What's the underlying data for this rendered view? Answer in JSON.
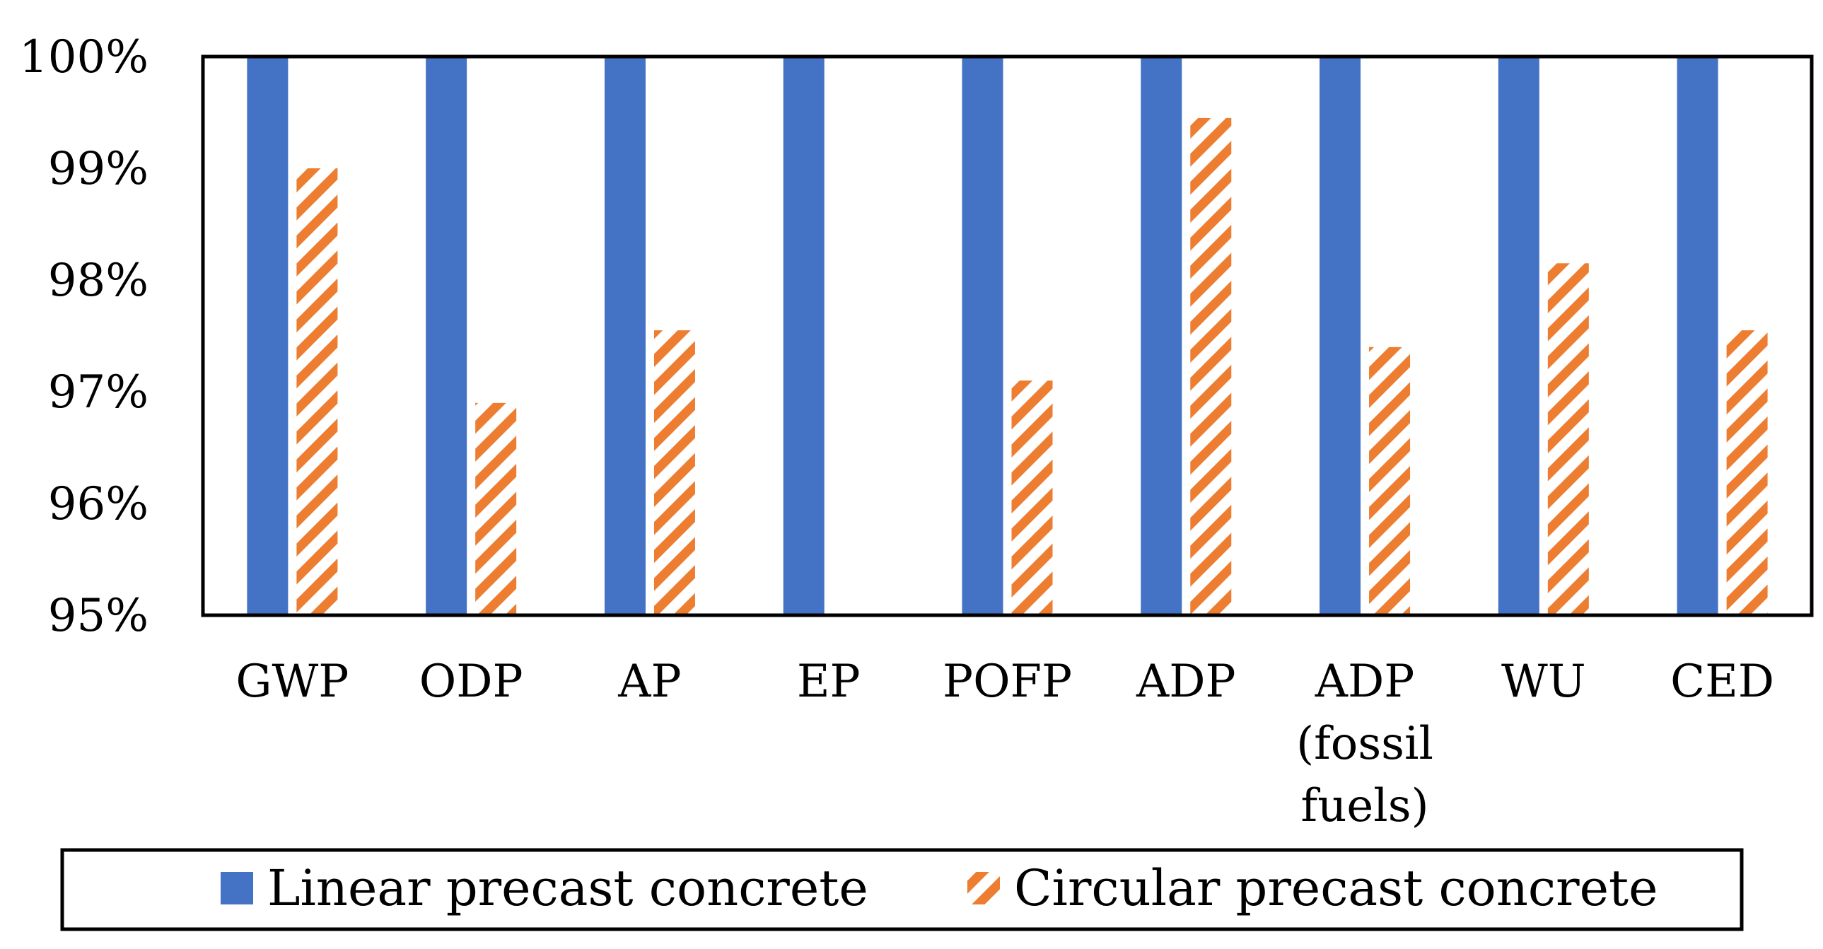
{
  "chart_data": {
    "type": "bar",
    "title": "",
    "xlabel": "",
    "ylabel": "",
    "ylim": [
      95,
      100
    ],
    "yticks": [
      "95%",
      "96%",
      "97%",
      "98%",
      "99%",
      "100%"
    ],
    "grid": false,
    "legend_position": "bottom",
    "categories": [
      [
        "GWP"
      ],
      [
        "ODP"
      ],
      [
        "AP"
      ],
      [
        "EP"
      ],
      [
        "POFP"
      ],
      [
        "ADP"
      ],
      [
        "ADP",
        "(fossil",
        "fuels)"
      ],
      [
        "WU"
      ],
      [
        "CED"
      ]
    ],
    "series": [
      {
        "name": "Linear precast concrete",
        "color": "#4472C4",
        "pattern": "solid",
        "values": [
          100,
          100,
          100,
          100,
          100,
          100,
          100,
          100,
          100
        ]
      },
      {
        "name": "Circular precast concrete",
        "color": "#ED7D31",
        "pattern": "wide-downward-diagonal",
        "values": [
          99.0,
          96.9,
          97.55,
          94.9,
          97.1,
          99.45,
          97.4,
          98.15,
          97.55
        ]
      }
    ]
  }
}
